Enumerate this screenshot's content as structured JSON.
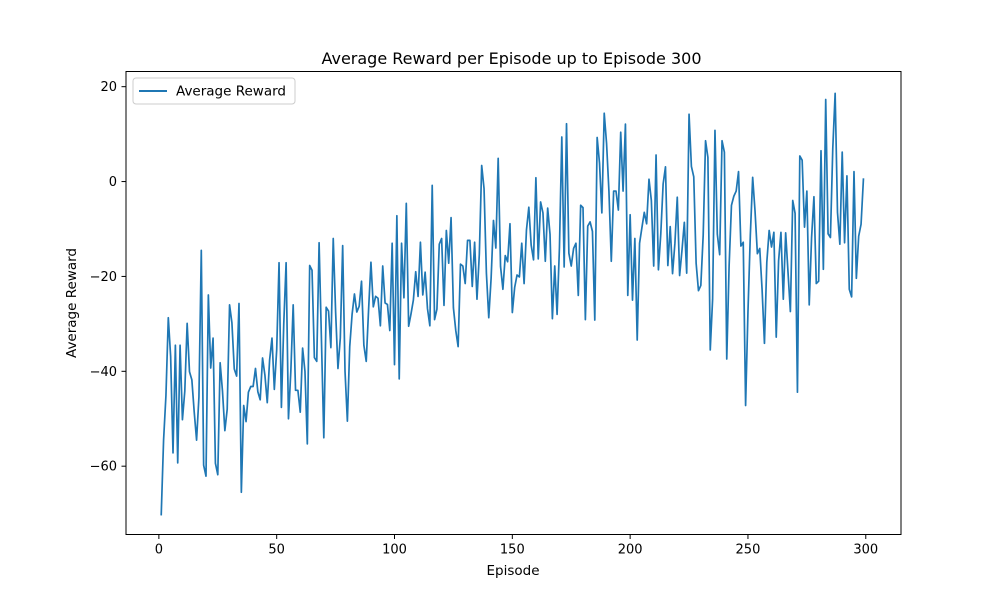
{
  "chart_data": {
    "type": "line",
    "title": "Average Reward per Episode up to Episode 300",
    "xlabel": "Episode",
    "ylabel": "Average Reward",
    "xlim": [
      -13.95,
      314.95
    ],
    "ylim": [
      -74.4,
      23.2
    ],
    "xticks": [
      0,
      50,
      100,
      150,
      200,
      250,
      300
    ],
    "yticks": [
      -60,
      -40,
      -20,
      0,
      20
    ],
    "grid": false,
    "legend": {
      "position": "top-left",
      "entries": [
        "Average Reward"
      ]
    },
    "series": [
      {
        "name": "Average Reward",
        "color": "#1f77b4",
        "x_start": 1,
        "x_step": 1,
        "values": [
          -70.2,
          -54.5,
          -45.1,
          -28.7,
          -36.9,
          -57.2,
          -34.5,
          -59.3,
          -34.5,
          -50.2,
          -44.2,
          -29.9,
          -40.1,
          -41.8,
          -48.6,
          -54.5,
          -45.4,
          -14.5,
          -59.8,
          -62.1,
          -23.9,
          -39.3,
          -33.0,
          -59.4,
          -61.8,
          -38.2,
          -44.2,
          -52.5,
          -48.0,
          -26.0,
          -29.8,
          -39.5,
          -41.0,
          -25.7,
          -65.5,
          -47.2,
          -50.6,
          -44.4,
          -43.2,
          -43.2,
          -39.4,
          -44.3,
          -46.0,
          -37.2,
          -40.8,
          -46.6,
          -37.6,
          -33.0,
          -43.8,
          -35.5,
          -17.1,
          -47.6,
          -30.0,
          -17.1,
          -50.0,
          -40.0,
          -26.0,
          -44.0,
          -44.0,
          -48.6,
          -35.1,
          -40.0,
          -55.3,
          -17.7,
          -18.7,
          -37.1,
          -37.9,
          -12.9,
          -33.5,
          -54.0,
          -26.5,
          -27.3,
          -35.0,
          -12.0,
          -27.4,
          -39.4,
          -33.0,
          -13.5,
          -40.0,
          -50.5,
          -34.8,
          -28.0,
          -23.7,
          -27.5,
          -26.3,
          -21.0,
          -34.5,
          -37.9,
          -27.0,
          -17.0,
          -26.4,
          -24.2,
          -24.6,
          -30.4,
          -17.8,
          -25.6,
          -25.9,
          -31.4,
          -13.0,
          -38.6,
          -7.2,
          -41.6,
          -13.0,
          -24.5,
          -4.6,
          -30.5,
          -27.9,
          -25.0,
          -19.0,
          -24.2,
          -12.8,
          -23.9,
          -19.1,
          -26.8,
          -30.4,
          -0.8,
          -29.1,
          -26.9,
          -13.2,
          -12.0,
          -26.1,
          -10.3,
          -17.2,
          -7.6,
          -26.6,
          -31.4,
          -34.8,
          -17.4,
          -17.8,
          -21.5,
          -12.4,
          -12.4,
          -22.1,
          -12.8,
          -24.8,
          -15.3,
          3.4,
          -1.5,
          -19.3,
          -28.7,
          -20.4,
          -8.2,
          -14.0,
          4.9,
          -17.9,
          -22.7,
          -15.6,
          -16.9,
          -8.9,
          -27.6,
          -22.3,
          -19.7,
          -20.1,
          -13.0,
          -21.5,
          -10.2,
          -5.4,
          -13.4,
          -16.5,
          0.8,
          -16.3,
          -4.3,
          -6.6,
          -16.8,
          -5.6,
          -11.1,
          -28.9,
          -17.8,
          -28.0,
          -13.9,
          9.4,
          -18.0,
          12.2,
          -15.1,
          -17.8,
          -14.1,
          -13.0,
          -24.0,
          -5.0,
          -5.5,
          -29.1,
          -9.4,
          -8.5,
          -10.5,
          -29.2,
          9.3,
          3.9,
          -6.6,
          14.4,
          8.0,
          -2.0,
          -16.8,
          -2.0,
          -2.0,
          -6.0,
          10.4,
          -2.0,
          12.1,
          -24.0,
          -7.0,
          -25.0,
          -12.0,
          -33.4,
          -13.0,
          -9.7,
          -6.5,
          -8.9,
          0.5,
          -4.0,
          -17.8,
          5.6,
          -18.6,
          -11.1,
          -0.5,
          3.1,
          -17.7,
          -9.5,
          -19.4,
          -13.0,
          -3.3,
          -19.8,
          -14.5,
          -8.6,
          -19.3,
          14.2,
          3.2,
          1.0,
          -17.2,
          -23.0,
          -21.9,
          -11.3,
          8.6,
          5.1,
          -35.5,
          -24.8,
          10.8,
          -11.1,
          -15.4,
          8.6,
          6.2,
          -37.4,
          -17.8,
          -5.0,
          -3.1,
          -2.0,
          2.1,
          -13.6,
          -12.8,
          -47.2,
          -27.5,
          -11.4,
          0.9,
          -6.2,
          -15.2,
          -14.1,
          -22.8,
          -34.1,
          -17.0,
          -10.3,
          -13.8,
          -10.7,
          -32.8,
          -16.7,
          -10.7,
          -24.8,
          -10.8,
          -19.1,
          -27.4,
          -4.0,
          -6.7,
          -44.4,
          5.4,
          4.5,
          -9.6,
          -2.0,
          -26.0,
          -11.8,
          -3.2,
          -21.5,
          -21.0,
          6.5,
          -18.5,
          17.3,
          -11.0,
          -11.8,
          7.0,
          18.6,
          -6.5,
          -13.2,
          6.2,
          -12.9,
          1.2,
          -22.7,
          -24.3,
          2.1,
          -20.4,
          -11.5,
          -9.0,
          0.5
        ]
      }
    ]
  }
}
